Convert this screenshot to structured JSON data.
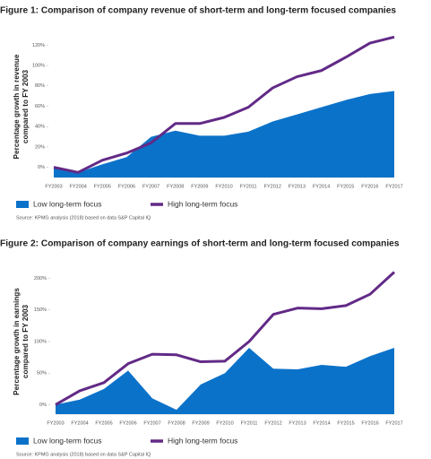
{
  "chart_data": [
    {
      "type": "area-line",
      "title": "Figure 1: Comparison of company revenue of short-term and long-term focused companies",
      "y_label": "Percentage growth in revenue compared to FY 2003",
      "categories": [
        "FY2003",
        "FY2004",
        "FY2005",
        "FY2006",
        "FY2007",
        "FY2008",
        "FY2009",
        "FY2010",
        "FY2011",
        "FY2012",
        "FY2013",
        "FY2014",
        "FY2015",
        "FY2016",
        "FY2017"
      ],
      "series": [
        {
          "name": "Low long-term focus",
          "color": "#0b72c9",
          "type": "area",
          "values": [
            0,
            -5,
            3,
            10,
            30,
            36,
            31,
            31,
            35,
            45,
            52,
            59,
            66,
            72,
            75
          ]
        },
        {
          "name": "High long-term focus",
          "color": "#622a87",
          "type": "line",
          "values": [
            0,
            -5,
            7,
            14,
            24,
            43,
            43,
            49,
            59,
            78,
            89,
            95,
            108,
            122,
            128
          ]
        }
      ],
      "ylim": [
        -10,
        130
      ],
      "yticks": [
        {
          "value": 0,
          "label": "0%"
        },
        {
          "value": 20,
          "label": "20%"
        },
        {
          "value": 40,
          "label": "40%"
        },
        {
          "value": 60,
          "label": "60%"
        },
        {
          "value": 80,
          "label": "80%"
        },
        {
          "value": 100,
          "label": "100%"
        },
        {
          "value": 120,
          "label": "120%"
        }
      ],
      "source": "Source: KPMG analysis (2018) based on data S&P Capital IQ"
    },
    {
      "type": "area-line",
      "title": "Figure 2: Comparison of company earnings of short-term and long-term focused companies",
      "y_label": "Percentage growth in earnings compared to FY 2003",
      "categories": [
        "FY2003",
        "FY2004",
        "FY2005",
        "FY2006",
        "FY2007",
        "FY2008",
        "FY2009",
        "FY2010",
        "FY2011",
        "FY2012",
        "FY2013",
        "FY2014",
        "FY2015",
        "FY2016",
        "FY2017"
      ],
      "series": [
        {
          "name": "Low long-term focus",
          "color": "#0b72c9",
          "type": "area",
          "values": [
            0,
            8,
            25,
            54,
            10,
            -8,
            32,
            50,
            90,
            57,
            56,
            63,
            60,
            77,
            90
          ]
        },
        {
          "name": "High long-term focus",
          "color": "#622a87",
          "type": "line",
          "values": [
            0,
            22,
            35,
            65,
            80,
            79,
            68,
            69,
            100,
            143,
            153,
            152,
            157,
            175,
            210
          ]
        }
      ],
      "ylim": [
        -15,
        215
      ],
      "yticks": [
        {
          "value": 0,
          "label": "0%"
        },
        {
          "value": 50,
          "label": "50%"
        },
        {
          "value": 100,
          "label": "100%"
        },
        {
          "value": 150,
          "label": "150%"
        },
        {
          "value": 200,
          "label": "200%"
        }
      ],
      "source": "Source: KPMG analysis (2018) based on data S&P Capital IQ"
    }
  ]
}
